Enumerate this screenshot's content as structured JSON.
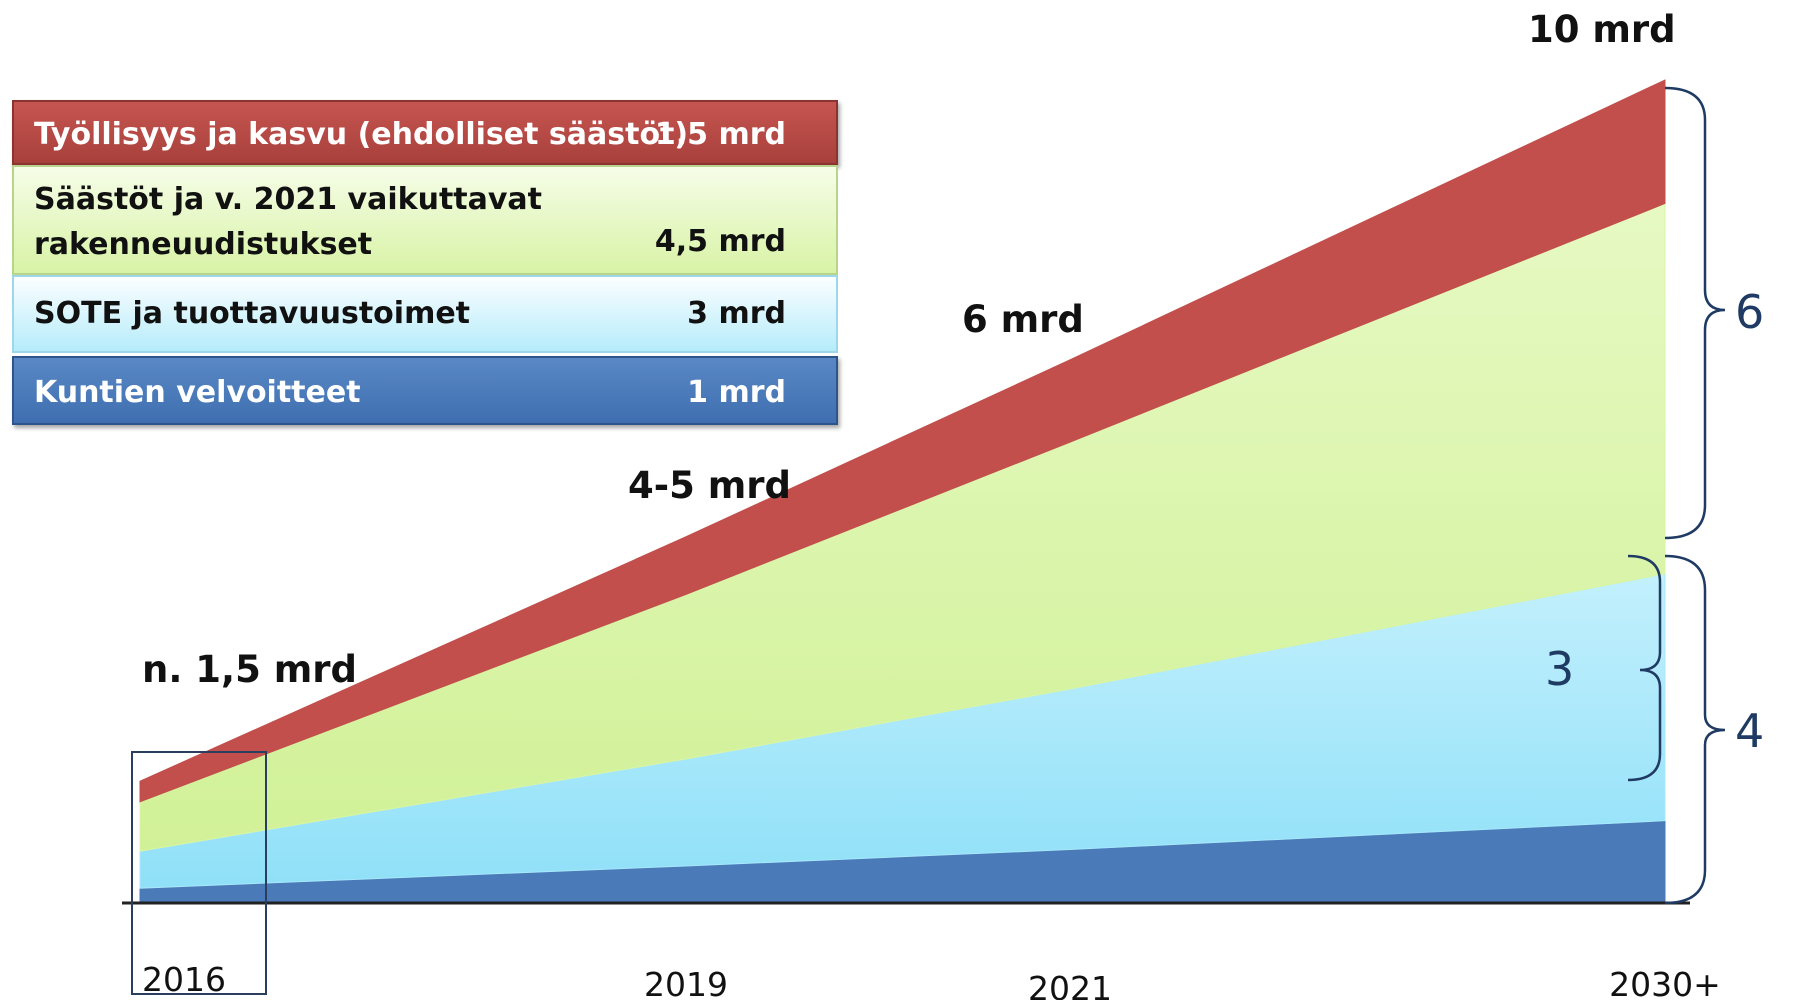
{
  "chart_data": {
    "type": "area",
    "x": [
      "2016",
      "2019",
      "2021",
      "2030+"
    ],
    "series": [
      {
        "name": "Kuntien velvoitteet",
        "legend_value": "1 mrd",
        "color": "#4a7ab8",
        "values": [
          0.18,
          0.45,
          0.65,
          1.0
        ]
      },
      {
        "name": "SOTE ja tuottavuustoimet",
        "legend_value": "3 mrd",
        "color": "#a8e8fb",
        "values": [
          0.45,
          1.3,
          1.95,
          3.0
        ]
      },
      {
        "name": "Säästöt ja v. 2021 vaikuttavat rakenneuudistukset",
        "legend_value": "4,5 mrd",
        "color": "#d8f5a6",
        "values": [
          0.6,
          2.0,
          3.0,
          4.5
        ]
      },
      {
        "name": "Työllisyys ja kasvu  (ehdolliset säästöt)",
        "legend_value": "1,5 mrd",
        "color": "#c24f4c",
        "values": [
          0.25,
          0.7,
          1.0,
          1.5
        ]
      }
    ],
    "ylim": [
      0,
      10
    ],
    "annotations": [
      "n. 1,5 mrd",
      "4-5 mrd",
      "6 mrd",
      "10 mrd"
    ],
    "brackets": [
      "6",
      "3",
      "4"
    ],
    "title": "",
    "xlabel": "",
    "ylabel": "",
    "grid": false,
    "legend_position": "top-left"
  },
  "legend": {
    "red_name": "Työllisyys ja kasvu  (ehdolliset säästöt)",
    "red_value": "1,5 mrd",
    "green_name": "Säästöt ja v. 2021 vaikuttavat rakenneuudistukset",
    "green_value": "4,5 mrd",
    "cyan_name": "SOTE ja tuottavuustoimet",
    "cyan_value": "3 mrd",
    "blue_name": "Kuntien velvoitteet",
    "blue_value": "1 mrd"
  }
}
